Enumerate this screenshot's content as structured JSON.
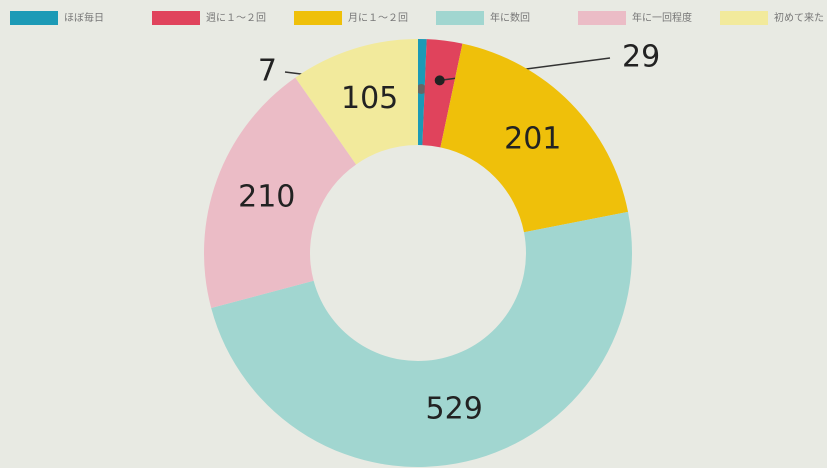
{
  "chart_data": {
    "type": "donut",
    "categories": [
      "ほぼ毎日",
      "週に１～２回",
      "月に１～２回",
      "年に数回",
      "年に一回程度",
      "初めて来た"
    ],
    "values": [
      7,
      29,
      201,
      529,
      210,
      105
    ],
    "colors": [
      "#1c9ab6",
      "#e0435c",
      "#efc00a",
      "#a1d6d0",
      "#ebbcc6",
      "#f2ea9c"
    ],
    "legend": "top"
  }
}
